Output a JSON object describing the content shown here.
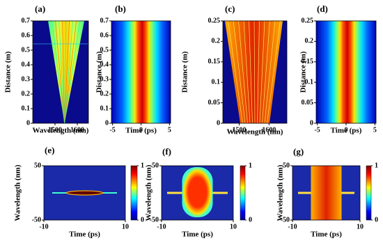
{
  "chart_data": [
    {
      "type": "heatmap",
      "panel_label": "(a)",
      "xlabel": "Wavelength (nm)",
      "ylabel": "Distance (m)",
      "xlim": [
        1400,
        1650
      ],
      "ylim": [
        0,
        0.7
      ],
      "xticks": [
        1500,
        1600
      ],
      "yticks": [
        0,
        0.1,
        0.2,
        0.3,
        0.4,
        0.5,
        0.6,
        0.7
      ]
    },
    {
      "type": "heatmap",
      "panel_label": "(b)",
      "xlabel": "Time (ps)",
      "ylabel": "Distance (m)",
      "xlim": [
        -5.2,
        5.2
      ],
      "ylim": [
        0,
        0.7
      ],
      "xticks": [
        -5,
        0,
        5
      ],
      "yticks": [
        0,
        0.1,
        0.2,
        0.3,
        0.4,
        0.5,
        0.6,
        0.7
      ]
    },
    {
      "type": "heatmap",
      "panel_label": "(c)",
      "xlabel": "Wavelength (nm)",
      "ylabel": "Distance (m)",
      "xlim": [
        1445,
        1660
      ],
      "ylim": [
        0,
        0.25
      ],
      "xticks": [
        1500,
        1600
      ],
      "yticks": [
        0,
        0.05,
        0.1,
        0.15,
        0.2,
        0.25
      ]
    },
    {
      "type": "heatmap",
      "panel_label": "(d)",
      "xlabel": "Time (ps)",
      "ylabel": "Distance (m)",
      "xlim": [
        -5.2,
        5.2
      ],
      "ylim": [
        0,
        0.25
      ],
      "xticks": [
        -5,
        0,
        5
      ],
      "yticks": [
        0,
        0.05,
        0.1,
        0.15,
        0.2,
        0.25
      ]
    },
    {
      "type": "heatmap",
      "panel_label": "(e)",
      "xlabel": "Time (ps)",
      "ylabel": "Wavelength (nm)",
      "xlim": [
        -10,
        10
      ],
      "ylim": [
        -50,
        50
      ],
      "xticks": [
        -10,
        10
      ],
      "yticks": [
        -50,
        50
      ],
      "clim": [
        0,
        1
      ],
      "cticks": [
        0,
        1
      ]
    },
    {
      "type": "heatmap",
      "panel_label": "(f)",
      "xlabel": "Time (ps)",
      "ylabel": "Wavelength (nm)",
      "xlim": [
        -10,
        10
      ],
      "ylim": [
        -50,
        50
      ],
      "xticks": [
        -10,
        10
      ],
      "yticks": [
        -50,
        50
      ],
      "clim": [
        0,
        1
      ],
      "cticks": [
        0,
        1
      ]
    },
    {
      "type": "heatmap",
      "panel_label": "(g)",
      "xlabel": "Time (ps)",
      "ylabel": "Wavelength (nm)",
      "xlim": [
        -10,
        10
      ],
      "ylim": [
        -50,
        50
      ],
      "xticks": [
        -10,
        10
      ],
      "yticks": [
        -50,
        50
      ],
      "clim": [
        0,
        1
      ],
      "cticks": [
        0,
        1
      ]
    }
  ]
}
